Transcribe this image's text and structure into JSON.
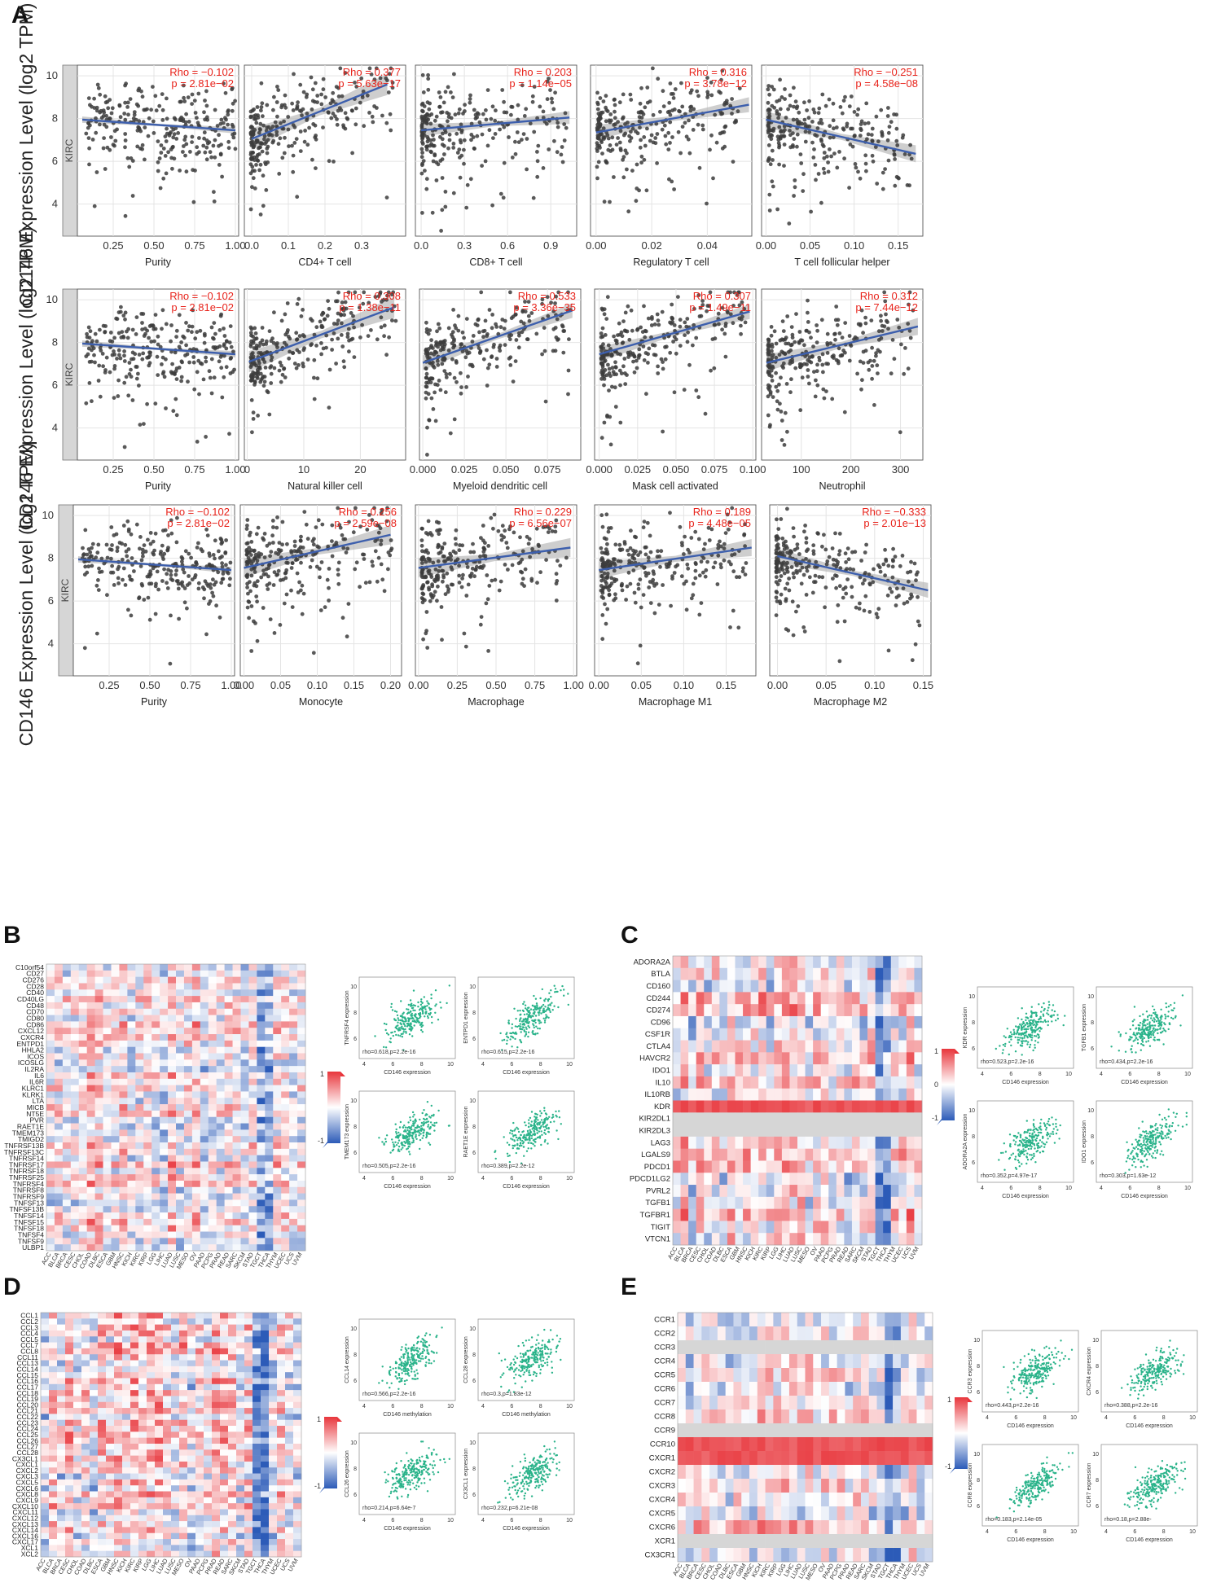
{
  "colors": {
    "point": "#3c3c3c",
    "line": "#3d5fad",
    "ribbon": "#b9b9b9",
    "stat": "#e8231b",
    "grid": "#e4e4e4",
    "mini_point": "#2ab38a",
    "hm_red": "#e8363c",
    "hm_blue": "#2c5bb8"
  },
  "chart_data": {
    "panel_A": {
      "type": "scatter",
      "panel_label": "A",
      "ylabel": "CD146 Expression Level (log2 TPM)",
      "strip_label": "KIRC",
      "ylim": [
        2.5,
        10.5
      ],
      "yticks": [
        "4",
        "6",
        "8",
        "10"
      ],
      "rows": [
        [
          {
            "xlabel": "Purity",
            "xlim": [
              0.03,
              1.02
            ],
            "xticks": [
              "0.25",
              "0.50",
              "0.75",
              "1.00"
            ],
            "xtick_values": [
              0.25,
              0.5,
              0.75,
              1.0
            ],
            "rho": "Rho = −0.102",
            "p": "p = 2.81e−02",
            "fit": [
              [
                0.06,
                7.95
              ],
              [
                1.0,
                7.45
              ]
            ],
            "band": 0.15
          },
          {
            "xlabel": "CD4+ T cell",
            "xlim": [
              -0.02,
              0.42
            ],
            "xticks": [
              "0.0",
              "0.1",
              "0.2",
              "0.3"
            ],
            "xtick_values": [
              0.0,
              0.1,
              0.2,
              0.3
            ],
            "rho": "Rho = 0.377",
            "p": "p = 5.63e−17",
            "fit": [
              [
                0.0,
                7.05
              ],
              [
                0.37,
                9.6
              ]
            ],
            "band": 0.5
          },
          {
            "xlabel": "CD8+ T cell",
            "xlim": [
              -0.04,
              1.08
            ],
            "xticks": [
              "0.0",
              "0.3",
              "0.6",
              "0.9"
            ],
            "xtick_values": [
              0.0,
              0.3,
              0.6,
              0.9
            ],
            "rho": "Rho = 0.203",
            "p": "p = 1.14e−05",
            "fit": [
              [
                0.0,
                7.45
              ],
              [
                1.03,
                8.05
              ]
            ],
            "band": 0.3
          },
          {
            "xlabel": "Regulatory T cell",
            "xlim": [
              -0.002,
              0.056
            ],
            "xticks": [
              "0.00",
              "0.02",
              "0.04"
            ],
            "xtick_values": [
              0.0,
              0.02,
              0.04
            ],
            "rho": "Rho = 0.316",
            "p": "p = 3.78e−12",
            "fit": [
              [
                0.0,
                7.35
              ],
              [
                0.055,
                8.65
              ]
            ],
            "band": 0.35
          },
          {
            "xlabel": "T cell follicular helper",
            "xlim": [
              -0.005,
              0.178
            ],
            "xticks": [
              "0.00",
              "0.05",
              "0.10",
              "0.15"
            ],
            "xtick_values": [
              0.0,
              0.05,
              0.1,
              0.15
            ],
            "rho": "Rho = −0.251",
            "p": "p = 4.58e−08",
            "fit": [
              [
                0.0,
                7.95
              ],
              [
                0.17,
                6.35
              ]
            ],
            "band": 0.4
          }
        ],
        [
          {
            "xlabel": "Purity",
            "xlim": [
              0.03,
              1.02
            ],
            "xticks": [
              "0.25",
              "0.50",
              "0.75",
              "1.00"
            ],
            "xtick_values": [
              0.25,
              0.5,
              0.75,
              1.0
            ],
            "rho": "Rho = −0.102",
            "p": "p = 2.81e−02",
            "fit": [
              [
                0.06,
                7.95
              ],
              [
                1.0,
                7.45
              ]
            ],
            "band": 0.15
          },
          {
            "xlabel": "Natural killer cell",
            "xlim": [
              -0.5,
              28
            ],
            "xticks": [
              "0",
              "10",
              "20"
            ],
            "xtick_values": [
              0,
              10,
              20
            ],
            "rho": "Rho = 0.308",
            "p": "p = 1.38e−11",
            "fit": [
              [
                0.3,
                7.1
              ],
              [
                26,
                9.65
              ]
            ],
            "band": 0.5
          },
          {
            "xlabel": "Myeloid dendritic cell",
            "xlim": [
              -0.002,
              0.095
            ],
            "xticks": [
              "0.000",
              "0.025",
              "0.050",
              "0.075"
            ],
            "xtick_values": [
              0.0,
              0.025,
              0.05,
              0.075
            ],
            "rho": "Rho = 0.533",
            "p": "p = 3.36e−35",
            "fit": [
              [
                0.0,
                7.05
              ],
              [
                0.09,
                9.5
              ]
            ],
            "band": 0.35
          },
          {
            "xlabel": "Mask cell activated",
            "xlim": [
              -0.003,
              0.102
            ],
            "xticks": [
              "0.000",
              "0.025",
              "0.050",
              "0.075",
              "0.100"
            ],
            "xtick_values": [
              0.0,
              0.025,
              0.05,
              0.075,
              0.1
            ],
            "rho": "Rho = 0.307",
            "p": "p = 1.49e−11",
            "fit": [
              [
                0.0,
                7.45
              ],
              [
                0.098,
                9.45
              ]
            ],
            "band": 0.35
          },
          {
            "xlabel": "Neutrophil",
            "xlim": [
              20,
              345
            ],
            "xticks": [
              "100",
              "200",
              "300"
            ],
            "xtick_values": [
              100,
              200,
              300
            ],
            "rho": "Rho = 0.312",
            "p": "p = 7.44e−12",
            "fit": [
              [
                30,
                7.05
              ],
              [
                335,
                8.75
              ]
            ],
            "band": 0.4
          }
        ],
        [
          {
            "xlabel": "Purity",
            "xlim": [
              0.03,
              1.02
            ],
            "xticks": [
              "0.25",
              "0.50",
              "0.75",
              "1.00"
            ],
            "xtick_values": [
              0.25,
              0.5,
              0.75,
              1.0
            ],
            "rho": "Rho = −0.102",
            "p": "p = 2.81e−02",
            "fit": [
              [
                0.06,
                7.95
              ],
              [
                1.0,
                7.45
              ]
            ],
            "band": 0.15
          },
          {
            "xlabel": "Monocyte",
            "xlim": [
              -0.005,
              0.215
            ],
            "xticks": [
              "0.00",
              "0.05",
              "0.10",
              "0.15",
              "0.20"
            ],
            "xtick_values": [
              0.0,
              0.05,
              0.1,
              0.15,
              0.2
            ],
            "rho": "Rho = 0.256",
            "p": "p = 2.59e−08",
            "fit": [
              [
                0.0,
                7.55
              ],
              [
                0.2,
                9.1
              ]
            ],
            "band": 0.45
          },
          {
            "xlabel": "Macrophage",
            "xlim": [
              -0.02,
              1.02
            ],
            "xticks": [
              "0.00",
              "0.25",
              "0.50",
              "0.75",
              "1.00"
            ],
            "xtick_values": [
              0.0,
              0.25,
              0.5,
              0.75,
              1.0
            ],
            "rho": "Rho = 0.229",
            "p": "p = 6.56e−07",
            "fit": [
              [
                0.0,
                7.55
              ],
              [
                0.98,
                8.5
              ]
            ],
            "band": 0.45
          },
          {
            "xlabel": "Macrophage M1",
            "xlim": [
              -0.005,
              0.185
            ],
            "xticks": [
              "0.00",
              "0.05",
              "0.10",
              "0.15"
            ],
            "xtick_values": [
              0.0,
              0.05,
              0.1,
              0.15
            ],
            "rho": "Rho = 0.189",
            "p": "p = 4.48e−05",
            "fit": [
              [
                0.0,
                7.45
              ],
              [
                0.18,
                8.5
              ]
            ],
            "band": 0.4
          },
          {
            "xlabel": "Macrophage M2",
            "xlim": [
              -0.008,
              0.158
            ],
            "xticks": [
              "0.00",
              "0.05",
              "0.10",
              "0.15"
            ],
            "xtick_values": [
              0.0,
              0.05,
              0.1,
              0.15
            ],
            "rho": "Rho = −0.333",
            "p": "p = 2.01e−13",
            "fit": [
              [
                0.0,
                8.1
              ],
              [
                0.155,
                6.5
              ]
            ],
            "band": 0.35
          }
        ]
      ]
    },
    "panel_B": {
      "type": "heatmap",
      "panel_label": "B",
      "genes": [
        "C10orf54",
        "CD27",
        "CD276",
        "CD28",
        "CD40",
        "CD40LG",
        "CD48",
        "CD70",
        "CD80",
        "CD86",
        "CXCL12",
        "CXCR4",
        "ENTPD1",
        "HHLA2",
        "ICOS",
        "ICOSLG",
        "IL2RA",
        "IL6",
        "IL6R",
        "KLRC1",
        "KLRK1",
        "LTA",
        "MICB",
        "NT5E",
        "PVR",
        "RAET1E",
        "TMEM173",
        "TMIGD2",
        "TNFRSF13B",
        "TNFRSF13C",
        "TNFRSF14",
        "TNFRSF17",
        "TNFRSF18",
        "TNFRSF25",
        "TNFRSF4",
        "TNFRSF8",
        "TNFRSF9",
        "TNFSF13",
        "TNFSF13B",
        "TNFSF14",
        "TNFSF15",
        "TNFSF18",
        "TNFSF4",
        "TNFSF9",
        "ULBP1"
      ],
      "legend": [
        "1",
        "-1"
      ],
      "scatters": [
        {
          "ylabel": "TNFRSF4 expression",
          "xlabel": "CD146 expression",
          "stat": "rho=0.618,p=2.2e-16"
        },
        {
          "ylabel": "ENTPD1 expression",
          "xlabel": "CD146 expression",
          "stat": "rho=0.615,p=2.2e-16"
        },
        {
          "ylabel": "TMEM173 expression",
          "xlabel": "CD146 expression",
          "stat": "rho=0.505,p=2.2e-16"
        },
        {
          "ylabel": "RAET1E expression",
          "xlabel": "CD146 expression",
          "stat": "rho=0.389,p=2.2e-12"
        }
      ]
    },
    "panel_C": {
      "type": "heatmap",
      "panel_label": "C",
      "genes": [
        "ADORA2A",
        "BTLA",
        "CD160",
        "CD244",
        "CD274",
        "CD96",
        "CSF1R",
        "CTLA4",
        "HAVCR2",
        "IDO1",
        "IL10",
        "IL10RB",
        "KDR",
        "KIR2DL1",
        "KIR2DL3",
        "LAG3",
        "LGALS9",
        "PDCD1",
        "PDCD1LG2",
        "PVRL2",
        "TGFB1",
        "TGFBR1",
        "TIGIT",
        "VTCN1"
      ],
      "legend": [
        "1",
        "0",
        "-1"
      ],
      "scatters": [
        {
          "ylabel": "KDR expression",
          "xlabel": "CD146 expression",
          "stat": "rho=0.523,p=2.2e-16"
        },
        {
          "ylabel": "TGFB1 expression",
          "xlabel": "CD146 expression",
          "stat": "rho=0.434,p=2.2e-16"
        },
        {
          "ylabel": "ADORA2A expression",
          "xlabel": "CD146 expression",
          "stat": "rho=0.352,p=4.97e-17"
        },
        {
          "ylabel": "IDO1 expression",
          "xlabel": "CD146 expression",
          "stat": "rho=0.303,p=1.63e-12"
        }
      ]
    },
    "panel_D": {
      "type": "heatmap",
      "panel_label": "D",
      "genes": [
        "CCL1",
        "CCL2",
        "CCL3",
        "CCL4",
        "CCL5",
        "CCL7",
        "CCL8",
        "CCL11",
        "CCL13",
        "CCL14",
        "CCL15",
        "CCL16",
        "CCL17",
        "CCL18",
        "CCL19",
        "CCL20",
        "CCL21",
        "CCL22",
        "CCL23",
        "CCL24",
        "CCL25",
        "CCL26",
        "CCL27",
        "CCL28",
        "CX3CL1",
        "CXCL1",
        "CXCL2",
        "CXCL3",
        "CXCL5",
        "CXCL6",
        "CXCL8",
        "CXCL9",
        "CXCL10",
        "CXCL11",
        "CXCL12",
        "CXCL13",
        "CXCL14",
        "CXCL16",
        "CXCL17",
        "XCL1",
        "XCL2"
      ],
      "legend": [
        "1",
        "-1"
      ],
      "scatters": [
        {
          "ylabel": "CCL14 expression",
          "xlabel": "CD146 methylation",
          "stat": "rho=0.566,p=2.2e-16"
        },
        {
          "ylabel": "CCL28 expression",
          "xlabel": "CD146 methylation",
          "stat": "rho=0.3,p=1.83e-12"
        },
        {
          "ylabel": "CCL26 expression",
          "xlabel": "CD146 expression",
          "stat": "rho=0.214,p=6.64e-7"
        },
        {
          "ylabel": "CX3CL1 expression",
          "xlabel": "CD146 expression",
          "stat": "rho=0.232,p=6.21e-08"
        }
      ]
    },
    "panel_E": {
      "type": "heatmap",
      "panel_label": "E",
      "genes": [
        "CCR1",
        "CCR2",
        "CCR3",
        "CCR4",
        "CCR5",
        "CCR6",
        "CCR7",
        "CCR8",
        "CCR9",
        "CCR10",
        "CXCR1",
        "CXCR2",
        "CXCR3",
        "CXCR4",
        "CXCR5",
        "CXCR6",
        "XCR1",
        "CX3CR1"
      ],
      "legend": [
        "1",
        "-1"
      ],
      "scatters": [
        {
          "ylabel": "CCR3 expression",
          "xlabel": "CD146 expression",
          "stat": "rho=0.443,p=2.2e-16"
        },
        {
          "ylabel": "CXCR4 expression",
          "xlabel": "CD146 expression",
          "stat": "rho=0.388,p=2.2e-16"
        },
        {
          "ylabel": "CCR8 expression",
          "xlabel": "CD146 expression",
          "stat": "rho=0.183,p=2.14e-05"
        },
        {
          "ylabel": "CCR7 expression",
          "xlabel": "CD146 expression",
          "stat": "rho=0.18,p=2.88e-"
        }
      ]
    },
    "cancers": [
      "ACC",
      "BLCA",
      "BRCA",
      "CESC",
      "CHOL",
      "COAD",
      "DLBC",
      "ESCA",
      "GBM",
      "HNSC",
      "KICH",
      "KIRC",
      "KIRP",
      "LGG",
      "LIHC",
      "LUAD",
      "LUSC",
      "MESO",
      "OV",
      "PAAD",
      "PCPG",
      "PRAD",
      "READ",
      "SARC",
      "SKCM",
      "STAD",
      "TGCT",
      "THCA",
      "THYM",
      "UCEC",
      "UCS",
      "UVM"
    ],
    "mini_ticks_x": [
      "4",
      "6",
      "8",
      "10"
    ],
    "mini_ticks_y": [
      "6",
      "8",
      "10"
    ]
  }
}
